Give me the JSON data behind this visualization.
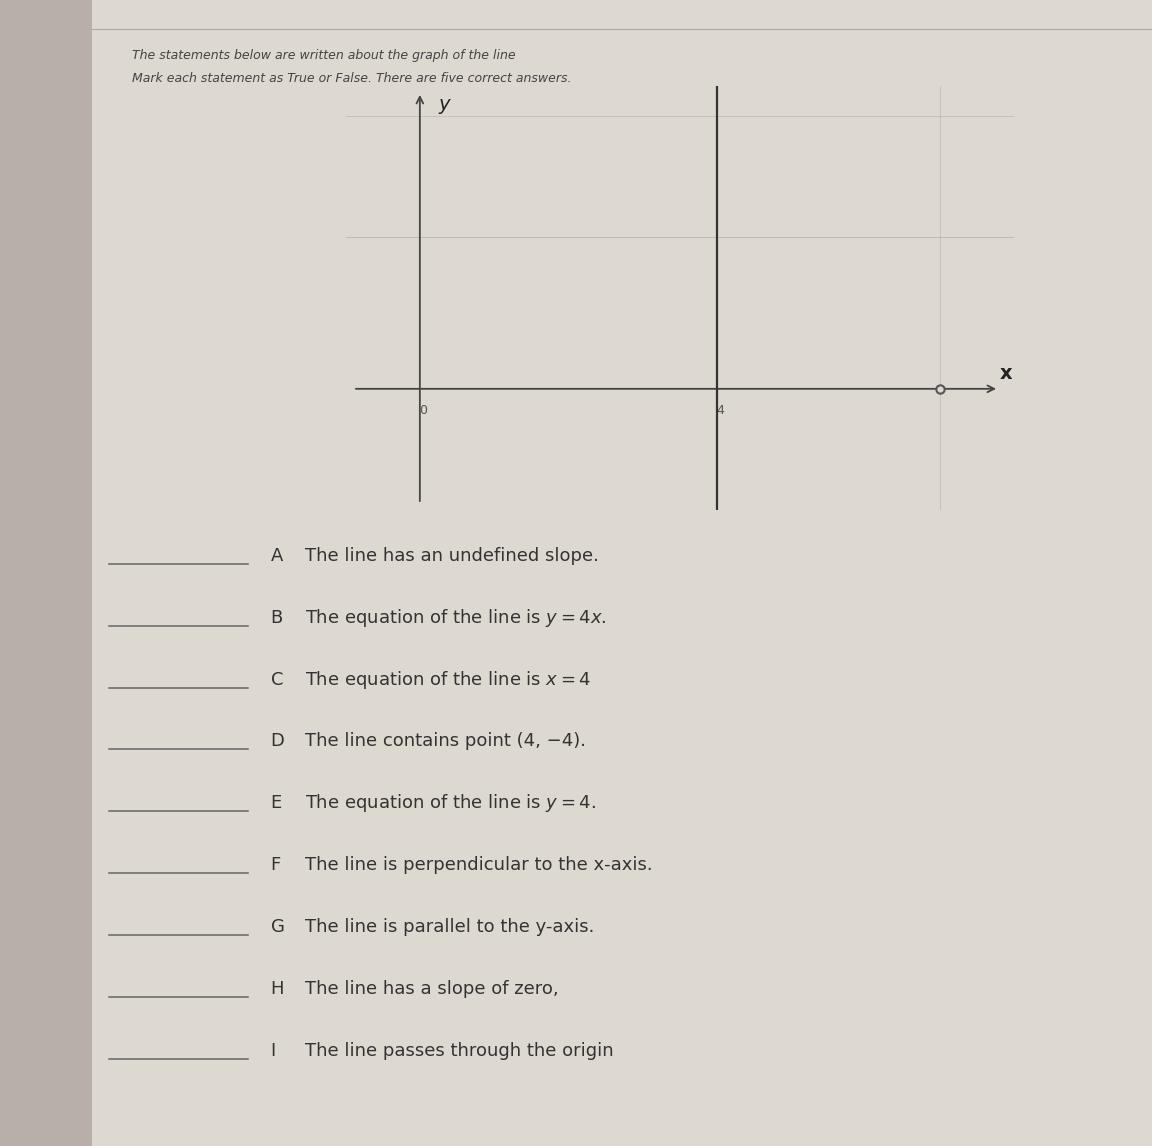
{
  "bg_left_color": "#b8b0a8",
  "bg_right_color": "#ddd8d0",
  "paper_color": "#ddd8d0",
  "title_line1": "The statements below are written about the graph of the line",
  "title_line2": "Mark each statement as True or False. There are five correct answers.",
  "title_fontsize": 9,
  "graph": {
    "xlim": [
      -1,
      8
    ],
    "ylim": [
      -4,
      10
    ],
    "x_axis_label": "x",
    "y_axis_label": "y",
    "vertical_line_x": 4,
    "dot_x": 7,
    "dot_y": 0,
    "dot_color": "#555555",
    "axis_color": "#444444",
    "line_color": "#333333",
    "grid_color": "#888888"
  },
  "statements": [
    {
      "label": "A",
      "text": "The line has an undefined slope."
    },
    {
      "label": "B",
      "text": "The equation of the line is $y = 4x$."
    },
    {
      "label": "C",
      "text": "The equation of the line is $x = 4$"
    },
    {
      "label": "D",
      "text": "The line contains point (4, −4)."
    },
    {
      "label": "E",
      "text": "The equation of the line is $y = 4$."
    },
    {
      "label": "F",
      "text": "The line is perpendicular to the x-axis."
    },
    {
      "label": "G",
      "text": "The line is parallel to the y-axis."
    },
    {
      "label": "H",
      "text": "The line has a slope of zero,"
    },
    {
      "label": "I",
      "text": "The line passes through the origin"
    }
  ],
  "statement_fontsize": 13,
  "label_fontsize": 13
}
